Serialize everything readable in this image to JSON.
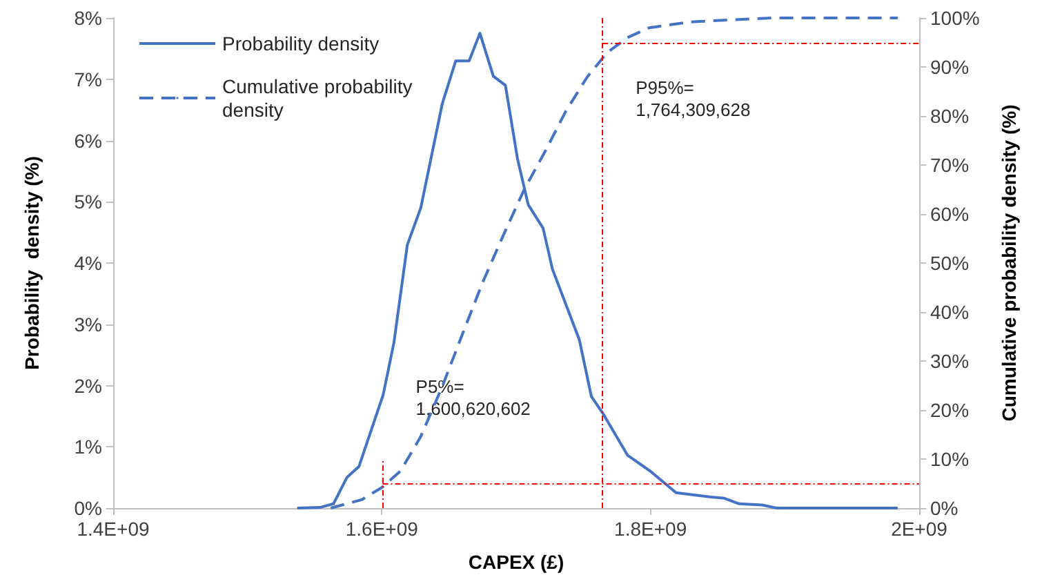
{
  "chart_data": {
    "type": "line",
    "xlabel": "CAPEX (£)",
    "ylabel": "Probability  density (%)",
    "y2label": "Cumulative probability density (%)",
    "xlim": [
      1400000000,
      2000000000
    ],
    "xticks": [
      {
        "value": 1400000000,
        "label": "1.4E+09"
      },
      {
        "value": 1600000000,
        "label": "1.6E+09"
      },
      {
        "value": 1800000000,
        "label": "1.8E+09"
      },
      {
        "value": 2000000000,
        "label": "2E+09"
      }
    ],
    "ylim": [
      0,
      8
    ],
    "yticks": [
      {
        "value": 0,
        "label": "0%"
      },
      {
        "value": 1,
        "label": "1%"
      },
      {
        "value": 2,
        "label": "2%"
      },
      {
        "value": 3,
        "label": "3%"
      },
      {
        "value": 4,
        "label": "4%"
      },
      {
        "value": 5,
        "label": "5%"
      },
      {
        "value": 6,
        "label": "6%"
      },
      {
        "value": 7,
        "label": "7%"
      },
      {
        "value": 8,
        "label": "8%"
      }
    ],
    "y2lim": [
      0,
      100
    ],
    "y2ticks": [
      {
        "value": 0,
        "label": "0%"
      },
      {
        "value": 10,
        "label": "10%"
      },
      {
        "value": 20,
        "label": "20%"
      },
      {
        "value": 30,
        "label": "30%"
      },
      {
        "value": 40,
        "label": "40%"
      },
      {
        "value": 50,
        "label": "50%"
      },
      {
        "value": 60,
        "label": "60%"
      },
      {
        "value": 70,
        "label": "70%"
      },
      {
        "value": 80,
        "label": "80%"
      },
      {
        "value": 90,
        "label": "90%"
      },
      {
        "value": 100,
        "label": "100%"
      }
    ],
    "series": [
      {
        "name": "Probability density",
        "color": "#4472c4",
        "line_style": "solid",
        "x": [
          1537000000,
          1554000000,
          1564000000,
          1574000000,
          1583000000,
          1601000000,
          1609000000,
          1619000000,
          1629000000,
          1645000000,
          1655000000,
          1665000000,
          1673000000,
          1683000000,
          1692000000,
          1701000000,
          1709000000,
          1720000000,
          1727000000,
          1747000000,
          1756000000,
          1765000000,
          1783000000,
          1800000000,
          1819000000,
          1845000000,
          1855000000,
          1866000000,
          1883000000,
          1894000000,
          1912000000,
          1943000000,
          1984000000
        ],
        "values": [
          0,
          0.01,
          0.07,
          0.5,
          0.68,
          1.85,
          2.7,
          4.3,
          4.9,
          6.6,
          7.3,
          7.3,
          7.75,
          7.05,
          6.9,
          5.7,
          4.95,
          4.57,
          3.9,
          2.75,
          1.82,
          1.53,
          0.86,
          0.6,
          0.25,
          0.18,
          0.16,
          0.07,
          0.05,
          0,
          0,
          0,
          0
        ]
      },
      {
        "name": "Cumulative probability density",
        "color": "#4472c4",
        "line_style": "dashed",
        "axis": "y2",
        "x": [
          1562000000,
          1585000000,
          1600000000,
          1614000000,
          1629000000,
          1645000000,
          1660000000,
          1675000000,
          1691000000,
          1706000000,
          1722000000,
          1737000000,
          1753000000,
          1768000000,
          1783000000,
          1799000000,
          1830000000,
          1860000000,
          1891000000,
          1932000000,
          1984000000
        ],
        "values": [
          0,
          1.7,
          4.2,
          7.6,
          14.6,
          24.8,
          35.5,
          46,
          56,
          65,
          73,
          81,
          88,
          93,
          96,
          98,
          99.2,
          99.6,
          100,
          100,
          100
        ]
      }
    ],
    "ref_lines": [
      {
        "axis": "x",
        "value": 1600620602,
        "label": "P5%=\n1,600,620,602",
        "color": "#ff0000",
        "line_style": "dashed"
      },
      {
        "axis": "x",
        "value": 1764309628,
        "label": "P95%=\n1,764,309,628",
        "color": "#ff0000",
        "line_style": "dashed"
      },
      {
        "axis": "y2",
        "value": 5,
        "color": "#ff0000",
        "line_style": "dashed"
      },
      {
        "axis": "y2",
        "value": 95,
        "color": "#ff0000",
        "line_style": "dashed"
      }
    ],
    "legend": "top left",
    "marker": "none",
    "grid": false
  }
}
